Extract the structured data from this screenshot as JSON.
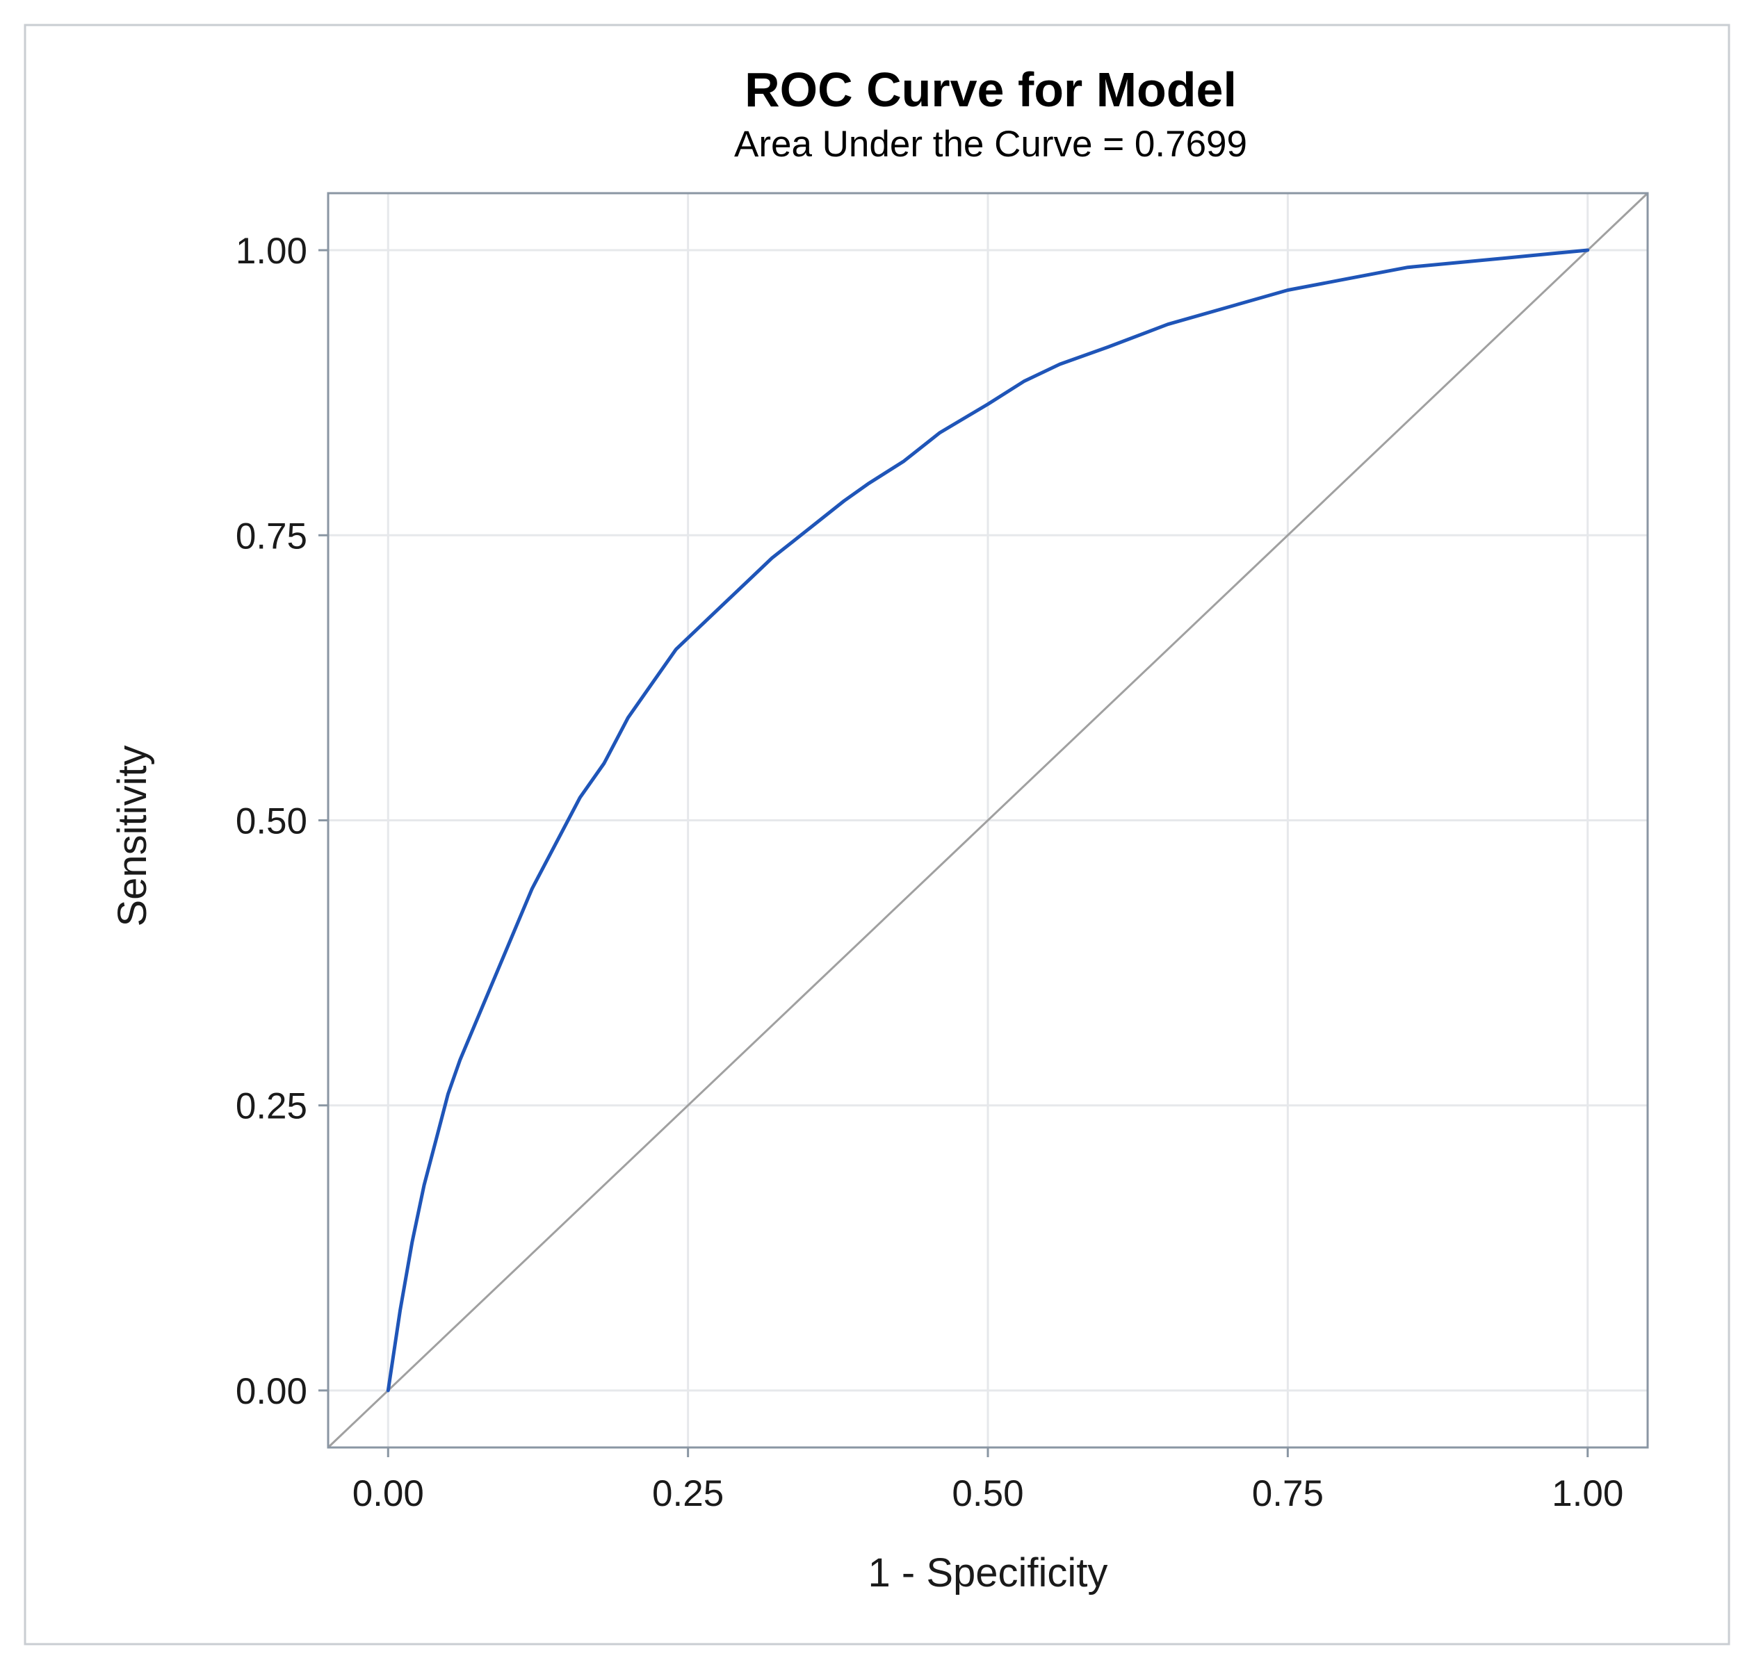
{
  "chart_data": {
    "type": "line",
    "title": "ROC Curve for Model",
    "subtitle": "Area Under the Curve = 0.7699",
    "xlabel": "1 - Specificity",
    "ylabel": "Sensitivity",
    "xlim": [
      -0.05,
      1.05
    ],
    "ylim": [
      -0.05,
      1.05
    ],
    "xticks": [
      0,
      0.25,
      0.5,
      0.75,
      1
    ],
    "yticks": [
      0,
      0.25,
      0.5,
      0.75,
      1
    ],
    "xtick_labels": [
      "0.00",
      "0.25",
      "0.50",
      "0.75",
      "1.00"
    ],
    "ytick_labels": [
      "0.00",
      "0.25",
      "0.50",
      "0.75",
      "1.00"
    ],
    "grid": true,
    "series": [
      {
        "name": "ROC",
        "color": "#1f55b8",
        "x": [
          0,
          0.01,
          0.02,
          0.03,
          0.04,
          0.05,
          0.06,
          0.08,
          0.1,
          0.12,
          0.14,
          0.16,
          0.18,
          0.2,
          0.22,
          0.24,
          0.26,
          0.28,
          0.3,
          0.32,
          0.35,
          0.38,
          0.4,
          0.43,
          0.46,
          0.5,
          0.53,
          0.56,
          0.6,
          0.65,
          0.7,
          0.75,
          0.8,
          0.85,
          0.9,
          0.95,
          1
        ],
        "y": [
          0,
          0.07,
          0.13,
          0.18,
          0.22,
          0.26,
          0.29,
          0.34,
          0.39,
          0.44,
          0.48,
          0.52,
          0.55,
          0.59,
          0.62,
          0.65,
          0.67,
          0.69,
          0.71,
          0.73,
          0.755,
          0.78,
          0.795,
          0.815,
          0.84,
          0.865,
          0.885,
          0.9,
          0.915,
          0.935,
          0.95,
          0.965,
          0.975,
          0.985,
          0.99,
          0.995,
          1
        ]
      },
      {
        "name": "Reference",
        "color": "#a0a0a0",
        "x": [
          -0.05,
          1.05
        ],
        "y": [
          -0.05,
          1.05
        ]
      }
    ]
  }
}
